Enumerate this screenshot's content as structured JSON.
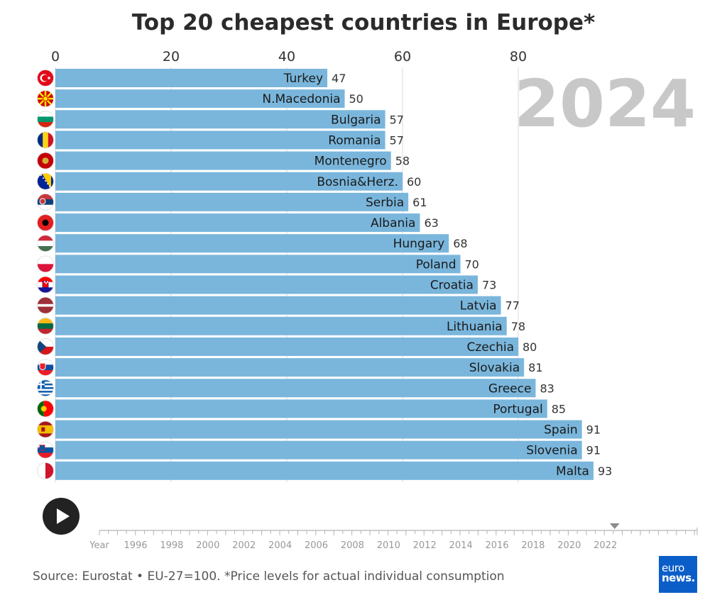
{
  "chart_data": {
    "type": "bar",
    "orientation": "horizontal",
    "title": "Top 20 cheapest countries in Europe*",
    "year_label": "2024",
    "x_ticks": [
      0,
      20,
      40,
      60,
      80
    ],
    "xlim": [
      0,
      93
    ],
    "grid": true,
    "categories": [
      "Turkey",
      "N.Macedonia",
      "Bulgaria",
      "Romania",
      "Montenegro",
      "Bosnia&Herz.",
      "Serbia",
      "Albania",
      "Hungary",
      "Poland",
      "Croatia",
      "Latvia",
      "Lithuania",
      "Czechia",
      "Slovakia",
      "Greece",
      "Portugal",
      "Spain",
      "Slovenia",
      "Malta"
    ],
    "values": [
      47,
      50,
      57,
      57,
      58,
      60,
      61,
      63,
      68,
      70,
      73,
      77,
      78,
      80,
      81,
      83,
      85,
      91,
      91,
      93
    ],
    "flag_icons": [
      "turkey-flag-icon",
      "north-macedonia-flag-icon",
      "bulgaria-flag-icon",
      "romania-flag-icon",
      "montenegro-flag-icon",
      "bosnia-flag-icon",
      "serbia-flag-icon",
      "albania-flag-icon",
      "hungary-flag-icon",
      "poland-flag-icon",
      "croatia-flag-icon",
      "latvia-flag-icon",
      "lithuania-flag-icon",
      "czechia-flag-icon",
      "slovakia-flag-icon",
      "greece-flag-icon",
      "portugal-flag-icon",
      "spain-flag-icon",
      "slovenia-flag-icon",
      "malta-flag-icon"
    ],
    "bar_color": "#7ab6dc"
  },
  "timeline": {
    "label": "Year",
    "years": [
      "1996",
      "1998",
      "2000",
      "2002",
      "2004",
      "2006",
      "2008",
      "2010",
      "2012",
      "2014",
      "2016",
      "2018",
      "2020",
      "2022"
    ],
    "current_fraction": 0.862
  },
  "play_button": {
    "icon": "play-icon"
  },
  "source": "Source: Eurostat • EU-27=100. *Price levels for actual individual consumption",
  "logo": {
    "line1": "euro",
    "line2": "news."
  }
}
